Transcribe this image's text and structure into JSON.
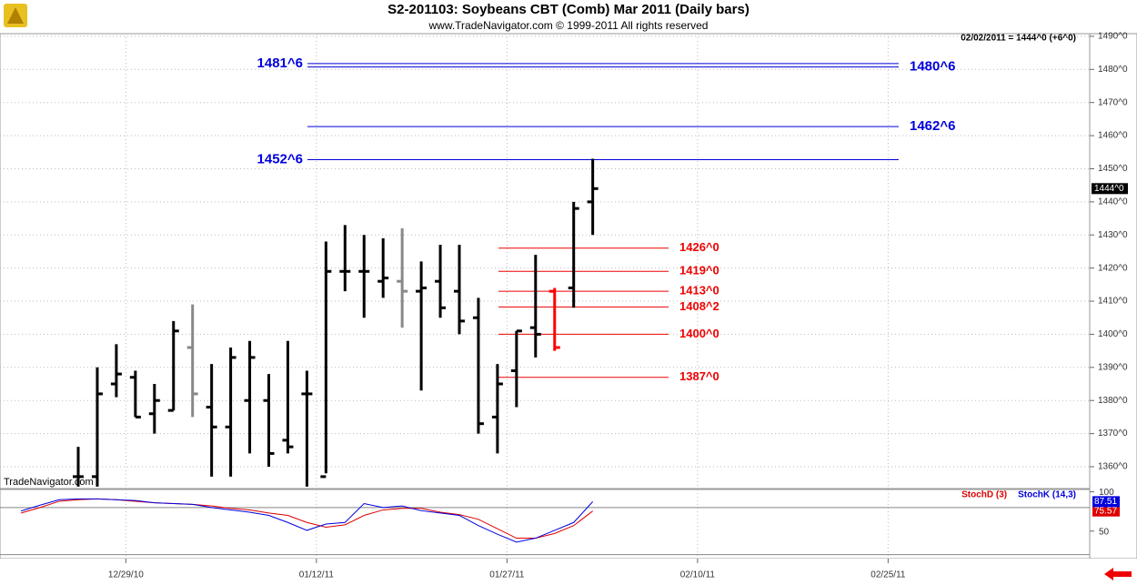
{
  "chart_data": [
    {
      "type": "ohlc",
      "title": "S2-201103:  Soybeans CBT (Comb) Mar 2011  (Daily bars)",
      "subtitle": "www.TradeNavigator.com © 1999-2011 All rights reserved",
      "header_info": "02/02/2011 = 1444^0 (+6^0)",
      "watermark": "TradeNavigator.com",
      "last_price": {
        "value": 1444,
        "label": "1444^0"
      },
      "categories": [
        null,
        null,
        null,
        null,
        null,
        null,
        "12/29/10",
        null,
        null,
        null,
        null,
        null,
        null,
        null,
        null,
        null,
        "01/12/11",
        null,
        null,
        null,
        null,
        null,
        null,
        null,
        null,
        null,
        "01/27/11",
        null,
        null,
        null,
        null,
        null,
        null,
        null,
        null,
        null,
        "02/10/11",
        null,
        null,
        null,
        null,
        null,
        null,
        null,
        null,
        null,
        "02/25/11",
        null,
        null,
        null,
        null,
        null,
        null,
        null,
        null,
        null
      ],
      "open": [
        null,
        null,
        null,
        1357,
        1357,
        1385,
        1387,
        1376,
        1377,
        1396,
        1378,
        1372,
        1380,
        1380,
        1368,
        1382,
        1357,
        1419,
        1419,
        1416,
        1416,
        1413,
        1416,
        1413,
        1405,
        1375,
        1389,
        1402,
        1413,
        1414,
        1440,
        null,
        null,
        null,
        null,
        null,
        null,
        null,
        null,
        null,
        null,
        null,
        null,
        null,
        null,
        null,
        null,
        null,
        null,
        null,
        null,
        null,
        null,
        null,
        null,
        null
      ],
      "high": [
        null,
        null,
        null,
        1366,
        1390,
        1397,
        1389,
        1385,
        1404,
        1409,
        1391,
        1396,
        1398,
        1388,
        1398,
        1389,
        1428,
        1433,
        1430,
        1429,
        1432,
        1422,
        1427,
        1427,
        1411,
        1391,
        1401,
        1424,
        1414,
        1440,
        1453,
        null,
        null,
        null,
        null,
        null,
        null,
        null,
        null,
        null,
        null,
        null,
        null,
        null,
        null,
        null,
        null,
        null,
        null,
        null,
        null,
        null,
        null,
        null,
        null,
        null
      ],
      "low": [
        null,
        null,
        null,
        1354,
        1354,
        1381,
        1375,
        1370,
        1377,
        1375,
        1357,
        1357,
        1364,
        1360,
        1364,
        1354,
        1358,
        1413,
        1405,
        1411,
        1402,
        1383,
        1405,
        1400,
        1370,
        1364,
        1378,
        1393,
        1395,
        1408,
        1430,
        null,
        null,
        null,
        null,
        null,
        null,
        null,
        null,
        null,
        null,
        null,
        null,
        null,
        null,
        null,
        null,
        null,
        null,
        null,
        null,
        null,
        null,
        null,
        null,
        null
      ],
      "close": [
        null,
        null,
        null,
        1357,
        1382,
        1388,
        1375,
        1380,
        1401,
        1382,
        1372,
        1393,
        1393,
        1364,
        1366,
        1382,
        1419,
        1419,
        1419,
        1417,
        1413,
        1414,
        1408,
        1404,
        1373,
        1385,
        1401,
        1400,
        1396,
        1438,
        1444,
        null,
        null,
        null,
        null,
        null,
        null,
        null,
        null,
        null,
        null,
        null,
        null,
        null,
        null,
        null,
        null,
        null,
        null,
        null,
        null,
        null,
        null,
        null,
        null,
        null
      ],
      "colors": [
        null,
        null,
        null,
        "#000000",
        "#000000",
        "#000000",
        "#000000",
        "#000000",
        "#000000",
        "#888888",
        "#000000",
        "#000000",
        "#000000",
        "#000000",
        "#000000",
        "#000000",
        "#000000",
        "#000000",
        "#000000",
        "#000000",
        "#888888",
        "#000000",
        "#000000",
        "#000000",
        "#000000",
        "#000000",
        "#000000",
        "#000000",
        "#ff0000",
        "#000000",
        "#000000",
        null,
        null,
        null,
        null,
        null,
        null,
        null,
        null,
        null,
        null,
        null,
        null,
        null,
        null,
        null,
        null,
        null,
        null,
        null,
        null,
        null,
        null,
        null,
        null,
        null
      ],
      "levels": [
        {
          "value": 1481.75,
          "label": "1481^6",
          "color": "#0000dd",
          "label_side": "left"
        },
        {
          "value": 1480.75,
          "label": "1480^6",
          "color": "#0000dd",
          "label_side": "right"
        },
        {
          "value": 1462.75,
          "label": "1462^6",
          "color": "#0000dd",
          "label_side": "right"
        },
        {
          "value": 1452.75,
          "label": "1452^6",
          "color": "#0000dd",
          "label_side": "left"
        },
        {
          "value": 1426,
          "label": "1426^0",
          "color": "#ee0000",
          "label_side": "right"
        },
        {
          "value": 1419,
          "label": "1419^0",
          "color": "#ee0000",
          "label_side": "right"
        },
        {
          "value": 1413,
          "label": "1413^0",
          "color": "#ee0000",
          "label_side": "right"
        },
        {
          "value": 1408.25,
          "label": "1408^2",
          "color": "#ee0000",
          "label_side": "right"
        },
        {
          "value": 1400,
          "label": "1400^0",
          "color": "#ee0000",
          "label_side": "right"
        },
        {
          "value": 1387,
          "label": "1387^0",
          "color": "#ee0000",
          "label_side": "right"
        }
      ],
      "ylim": [
        1353.4,
        1490.8
      ],
      "yticks": [
        {
          "value": 1360,
          "label": "1360^0"
        },
        {
          "value": 1370,
          "label": "1370^0"
        },
        {
          "value": 1380,
          "label": "1380^0"
        },
        {
          "value": 1390,
          "label": "1390^0"
        },
        {
          "value": 1400,
          "label": "1400^0"
        },
        {
          "value": 1410,
          "label": "1410^0"
        },
        {
          "value": 1420,
          "label": "1420^0"
        },
        {
          "value": 1430,
          "label": "1430^0"
        },
        {
          "value": 1440,
          "label": "1440^0"
        },
        {
          "value": 1450,
          "label": "1450^0"
        },
        {
          "value": 1460,
          "label": "1460^0"
        },
        {
          "value": 1470,
          "label": "1470^0"
        },
        {
          "value": 1480,
          "label": "1480^0"
        },
        {
          "value": 1490,
          "label": "1490^0"
        }
      ],
      "grid": true
    },
    {
      "type": "line",
      "ylim": [
        15,
        103
      ],
      "yticks": [
        100,
        50
      ],
      "ref_lines": [
        80,
        20
      ],
      "series": [
        {
          "name": "StochD (3)",
          "color": "#dd0000",
          "values": [
            73,
            80,
            88,
            90,
            91,
            90,
            88,
            86,
            85,
            84,
            82,
            79,
            77,
            73,
            70,
            61,
            55,
            58,
            70,
            77,
            79,
            79,
            74,
            71,
            65,
            53,
            41,
            41,
            47,
            57,
            75.57
          ]
        },
        {
          "name": "StochK (14,3)",
          "color": "#0000dd",
          "values": [
            75.6,
            83,
            90,
            91,
            91,
            90,
            89,
            86,
            85,
            84,
            80,
            77,
            74,
            70,
            61,
            51,
            59,
            61,
            85,
            80,
            82,
            76,
            73,
            70,
            57,
            46,
            36,
            41,
            51,
            61,
            87.51
          ]
        }
      ]
    }
  ]
}
